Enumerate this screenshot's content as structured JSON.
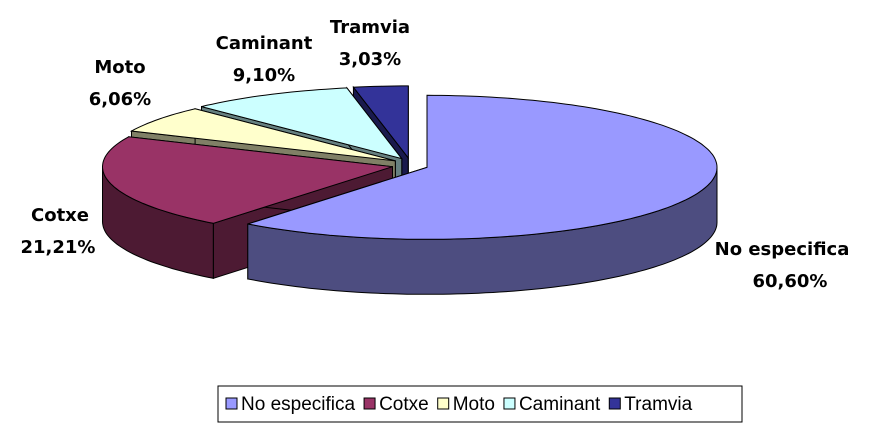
{
  "chart_data": {
    "type": "pie",
    "categories": [
      "No especifica",
      "Cotxe",
      "Moto",
      "Caminant",
      "Tramvia"
    ],
    "values": [
      60.6,
      21.21,
      6.06,
      9.1,
      3.03
    ],
    "value_labels": [
      "60,60%",
      "21,21%",
      "6,06%",
      "9,10%",
      "3,03%"
    ],
    "colors": [
      "#9999ff",
      "#993366",
      "#ffffcc",
      "#ccffff",
      "#333399"
    ],
    "legend": "bottom"
  }
}
